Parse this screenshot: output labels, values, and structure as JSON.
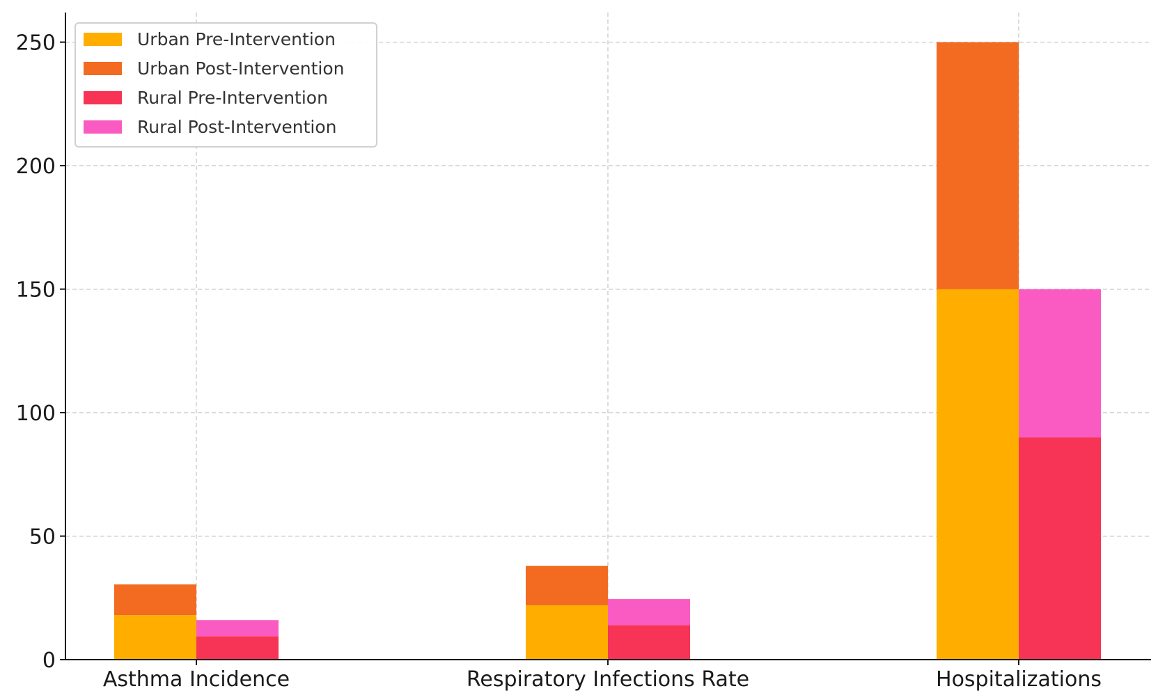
{
  "chart_data": {
    "type": "bar",
    "stacked": true,
    "grouped": true,
    "title": "",
    "xlabel": "",
    "ylabel": "",
    "categories": [
      "Asthma Incidence",
      "Respiratory Infections Rate",
      "Hospitalizations"
    ],
    "ylim": [
      0,
      262
    ],
    "yticks": [
      0,
      50,
      100,
      150,
      200,
      250
    ],
    "grid": true,
    "legend": "top-left",
    "groups": [
      {
        "group": "Urban",
        "series": [
          {
            "name": "Urban Pre-Intervention",
            "color": "#FFAE00",
            "values": [
              18,
              22,
              150
            ]
          },
          {
            "name": "Urban Post-Intervention",
            "color": "#F26B21",
            "values": [
              12.5,
              16,
              100
            ]
          }
        ]
      },
      {
        "group": "Rural",
        "series": [
          {
            "name": "Rural Pre-Intervention",
            "color": "#F73455",
            "values": [
              9.5,
              14,
              90
            ]
          },
          {
            "name": "Rural Post-Intervention",
            "color": "#FA5BC2",
            "values": [
              6.5,
              10.5,
              60
            ]
          }
        ]
      }
    ]
  }
}
